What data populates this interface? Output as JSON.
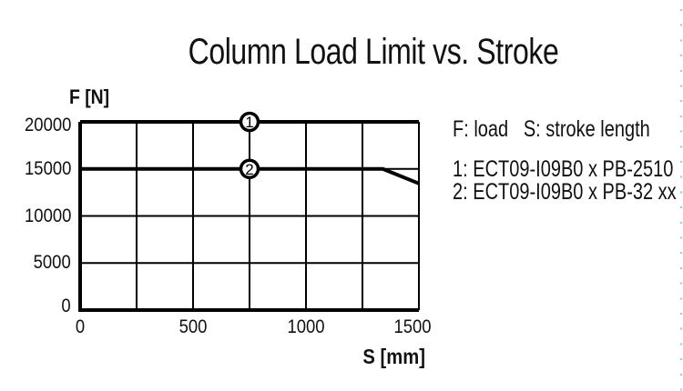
{
  "window": {
    "background": "#ffffff",
    "text_color": "#111111",
    "edge_marker_color": "#8ad6c8"
  },
  "chart_data": {
    "type": "line",
    "title": "Column Load Limit vs. Stroke",
    "xlabel": "S [mm]",
    "ylabel": "F [N]",
    "xlim": [
      0,
      1500
    ],
    "ylim": [
      0,
      20000
    ],
    "x_ticks": [
      0,
      500,
      1000,
      1500
    ],
    "y_ticks": [
      0,
      5000,
      10000,
      15000,
      20000
    ],
    "x_gridline_step": 250,
    "grid": true,
    "line_color": "#000000",
    "marker_fill": "#ffffff",
    "legend_position": "right",
    "legend_note": "F: load   S: stroke length",
    "series": [
      {
        "name": "1: ECT09-I09B0 x PB-2510",
        "marker_label": "1",
        "marker_x": 750,
        "points": [
          [
            0,
            20000
          ],
          [
            1500,
            20000
          ]
        ]
      },
      {
        "name": "2: ECT09-I09B0 x PB-32 xx",
        "marker_label": "2",
        "marker_x": 750,
        "points": [
          [
            0,
            15000
          ],
          [
            1340,
            15000
          ],
          [
            1500,
            13450
          ]
        ]
      }
    ]
  }
}
